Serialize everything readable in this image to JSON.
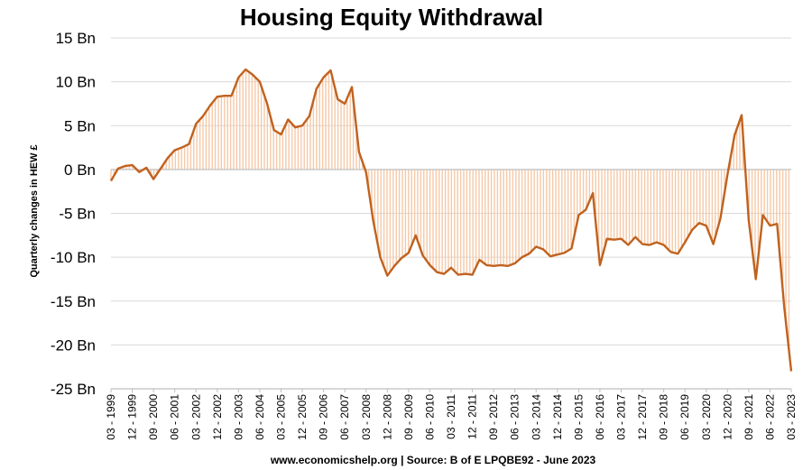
{
  "chart_data": {
    "type": "line",
    "title": "Housing Equity Withdrawal",
    "ylabel": "Quarterly changes in HEW £",
    "xlabel": "",
    "source": "www.economicshelp.org | Source: B of E LPQBE92 - June 2023",
    "ylim": [
      -25,
      15
    ],
    "yticks": [
      15,
      10,
      5,
      0,
      -5,
      -10,
      -15,
      -20,
      -25
    ],
    "ytick_labels": [
      "15  Bn",
      "10  Bn",
      "5  Bn",
      "0  Bn",
      "-5  Bn",
      "-10  Bn",
      "-15  Bn",
      "-20  Bn",
      "-25  Bn"
    ],
    "x_start": "03 - 1999",
    "x_end": "03 - 2023",
    "xtick_labels": [
      "03 - 1999",
      "12 - 1999",
      "09 - 2000",
      "06 - 2001",
      "03 - 2002",
      "12 - 2002",
      "09 - 2003",
      "06 - 2004",
      "03 - 2005",
      "12 - 2005",
      "09 - 2006",
      "06 - 2007",
      "03 - 2008",
      "12 - 2008",
      "09 - 2009",
      "06 - 2010",
      "03 - 2011",
      "12 - 2011",
      "09 - 2012",
      "06 - 2013",
      "03 - 2014",
      "12 - 2014",
      "09 - 2015",
      "06 - 2016",
      "03 - 2017",
      "12 - 2017",
      "09 - 2018",
      "06 - 2019",
      "03 - 2020",
      "12 - 2020",
      "09 - 2021",
      "06 - 2022",
      "03 - 2023"
    ],
    "grid": true,
    "legend": "none",
    "colors": {
      "line": "#c0621f",
      "fill": "#f6c9a7",
      "grid": "#d9d9d9",
      "axis": "#bfbfbf"
    },
    "series": [
      {
        "values": [
          -1.3,
          0.1,
          0.4,
          0.5,
          -0.3,
          0.2,
          -1.1,
          0.1,
          1.3,
          2.2,
          2.5,
          2.9,
          5.2,
          6.1,
          7.3,
          8.3,
          8.4,
          8.4,
          10.5,
          11.4,
          10.8,
          10.0,
          7.6,
          4.5,
          4.0,
          5.7,
          4.8,
          5.0,
          6.1,
          9.2,
          10.5,
          11.3,
          8.0,
          7.5,
          9.4,
          2.0,
          -0.3,
          -5.8,
          -10.0,
          -12.1,
          -11.0,
          -10.1,
          -9.5,
          -7.5,
          -9.8,
          -10.9,
          -11.7,
          -11.9,
          -11.2,
          -12.0,
          -11.9,
          -12.0,
          -10.3,
          -10.9,
          -11.0,
          -10.9,
          -11.0,
          -10.7,
          -10.0,
          -9.6,
          -8.8,
          -9.1,
          -9.9,
          -9.7,
          -9.5,
          -9.0,
          -5.2,
          -4.6,
          -2.7,
          -10.9,
          -7.9,
          -8.0,
          -7.9,
          -8.6,
          -7.7,
          -8.5,
          -8.6,
          -8.3,
          -8.6,
          -9.4,
          -9.6,
          -8.3,
          -6.9,
          -6.1,
          -6.4,
          -8.5,
          -5.6,
          -0.6,
          3.9,
          6.2,
          -5.8,
          -12.5,
          -5.2,
          -6.4,
          -6.2,
          -15.6,
          -23.0
        ]
      }
    ]
  }
}
